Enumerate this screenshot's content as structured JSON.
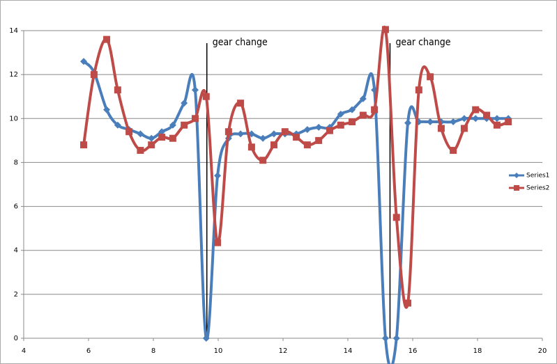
{
  "chart_data": {
    "type": "scatter-smooth",
    "x": [
      5.85,
      6.17,
      6.56,
      6.9,
      7.25,
      7.6,
      7.94,
      8.26,
      8.6,
      8.95,
      9.29,
      9.63,
      9.98,
      10.32,
      10.69,
      11.03,
      11.38,
      11.72,
      12.06,
      12.41,
      12.75,
      13.1,
      13.44,
      13.78,
      14.13,
      14.47,
      14.82,
      15.16,
      15.5,
      15.85,
      16.19,
      16.54,
      16.88,
      17.25,
      17.59,
      17.94,
      18.28,
      18.6,
      18.95
    ],
    "series": [
      {
        "name": "Series1",
        "color": "#4a7ebb",
        "marker": "diamond",
        "values": [
          12.6,
          12.1,
          10.4,
          9.7,
          9.5,
          9.3,
          9.1,
          9.4,
          9.7,
          10.7,
          11.3,
          0,
          7.4,
          9.1,
          9.3,
          9.3,
          9.1,
          9.3,
          9.3,
          9.3,
          9.5,
          9.6,
          9.6,
          10.2,
          10.4,
          10.9,
          11.3,
          0,
          0,
          9.8,
          9.85,
          9.85,
          9.85,
          9.85,
          10,
          10,
          10,
          10,
          10
        ]
      },
      {
        "name": "Series2",
        "color": "#be4b48",
        "marker": "square",
        "values": [
          8.8,
          12.0,
          13.6,
          11.3,
          9.4,
          8.55,
          8.8,
          9.15,
          9.1,
          9.7,
          10,
          11.0,
          4.35,
          9.4,
          10.7,
          8.7,
          8.1,
          8.8,
          9.4,
          9.15,
          8.8,
          9.0,
          9.45,
          9.7,
          9.85,
          10.15,
          10.4,
          14.05,
          5.5,
          1.6,
          11.3,
          11.9,
          9.55,
          8.55,
          9.55,
          10.4,
          10.15,
          9.7,
          9.85
        ]
      }
    ],
    "xlim": [
      4,
      20
    ],
    "xticks": [
      4,
      6,
      8,
      10,
      12,
      14,
      16,
      18,
      20
    ],
    "ylim": [
      0,
      14
    ],
    "yticks": [
      0,
      2,
      4,
      6,
      8,
      10,
      12,
      14
    ],
    "grid": true,
    "legend": "right",
    "annotations": [
      {
        "text": "gear change",
        "x": 9.65
      },
      {
        "text": "gear change",
        "x": 15.3
      }
    ]
  }
}
